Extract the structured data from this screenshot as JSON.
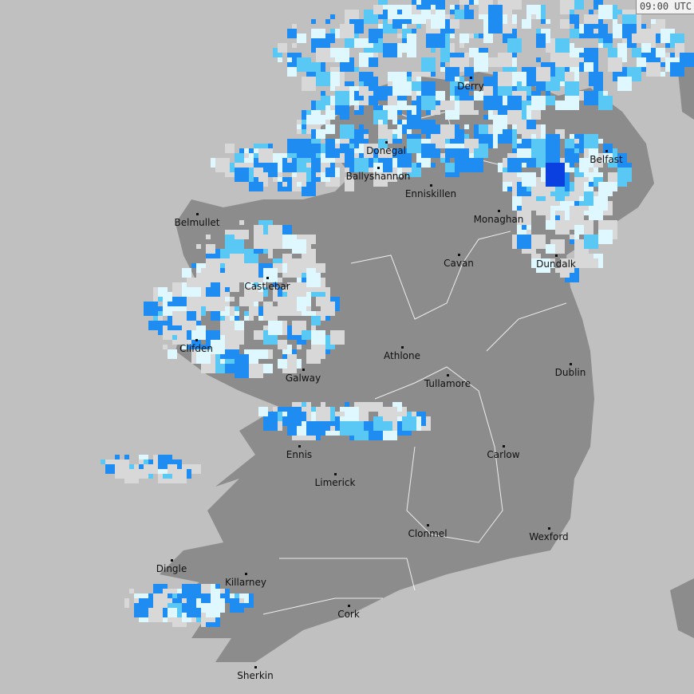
{
  "timestamp": "09:00 UTC",
  "colors": {
    "sea": "#c0c0c0",
    "land": "#8c8c8c",
    "light_rain": "#dff8ff",
    "moderate_rain": "#59c8f5",
    "heavy_rain": "#1e8cf0",
    "very_heavy_rain": "#0a40e0"
  },
  "cities": [
    {
      "name": "Derry"
    },
    {
      "name": "Donegal"
    },
    {
      "name": "Ballyshannon"
    },
    {
      "name": "Enniskillen"
    },
    {
      "name": "Belfast"
    },
    {
      "name": "Monaghan"
    },
    {
      "name": "Belmullet"
    },
    {
      "name": "Cavan"
    },
    {
      "name": "Dundalk"
    },
    {
      "name": "Castlebar"
    },
    {
      "name": "Clifden"
    },
    {
      "name": "Athlone"
    },
    {
      "name": "Dublin"
    },
    {
      "name": "Galway"
    },
    {
      "name": "Tullamore"
    },
    {
      "name": "Ennis"
    },
    {
      "name": "Carlow"
    },
    {
      "name": "Limerick"
    },
    {
      "name": "Clonmel"
    },
    {
      "name": "Wexford"
    },
    {
      "name": "Dingle"
    },
    {
      "name": "Killarney"
    },
    {
      "name": "Cork"
    },
    {
      "name": "Sherkin"
    }
  ]
}
